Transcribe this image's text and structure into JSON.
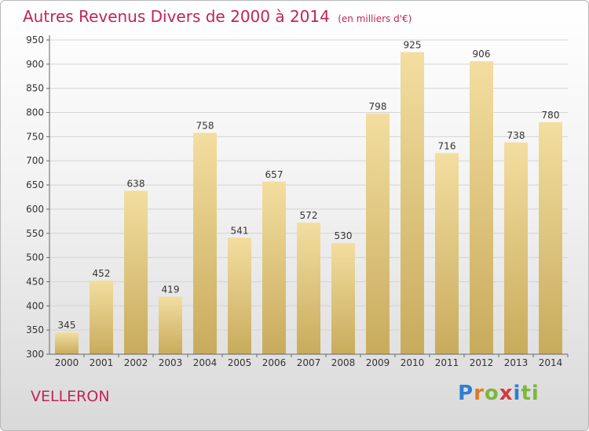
{
  "title": {
    "main": "Autres Revenus Divers de 2000 à 2014",
    "unit": "(en milliers d'€)"
  },
  "place": "VELLERON",
  "logo": {
    "letters": [
      "P",
      "r",
      "o",
      "x",
      "i",
      "ti"
    ]
  },
  "colors": {
    "title": "#c0245c",
    "bar_top": "#f3dea0",
    "bar_bottom": "#c8ab5c",
    "grid": "#d4d4d4"
  },
  "chart_data": {
    "type": "bar",
    "categories": [
      "2000",
      "2001",
      "2002",
      "2003",
      "2004",
      "2005",
      "2006",
      "2007",
      "2008",
      "2009",
      "2010",
      "2011",
      "2012",
      "2013",
      "2014"
    ],
    "values": [
      345,
      452,
      638,
      419,
      758,
      541,
      657,
      572,
      530,
      798,
      925,
      716,
      906,
      738,
      780
    ],
    "ylim": [
      300,
      950
    ],
    "yticks": [
      300,
      350,
      400,
      450,
      500,
      550,
      600,
      650,
      700,
      750,
      800,
      850,
      900,
      950
    ],
    "grid": true,
    "title": "Autres Revenus Divers de 2000 à 2014"
  }
}
